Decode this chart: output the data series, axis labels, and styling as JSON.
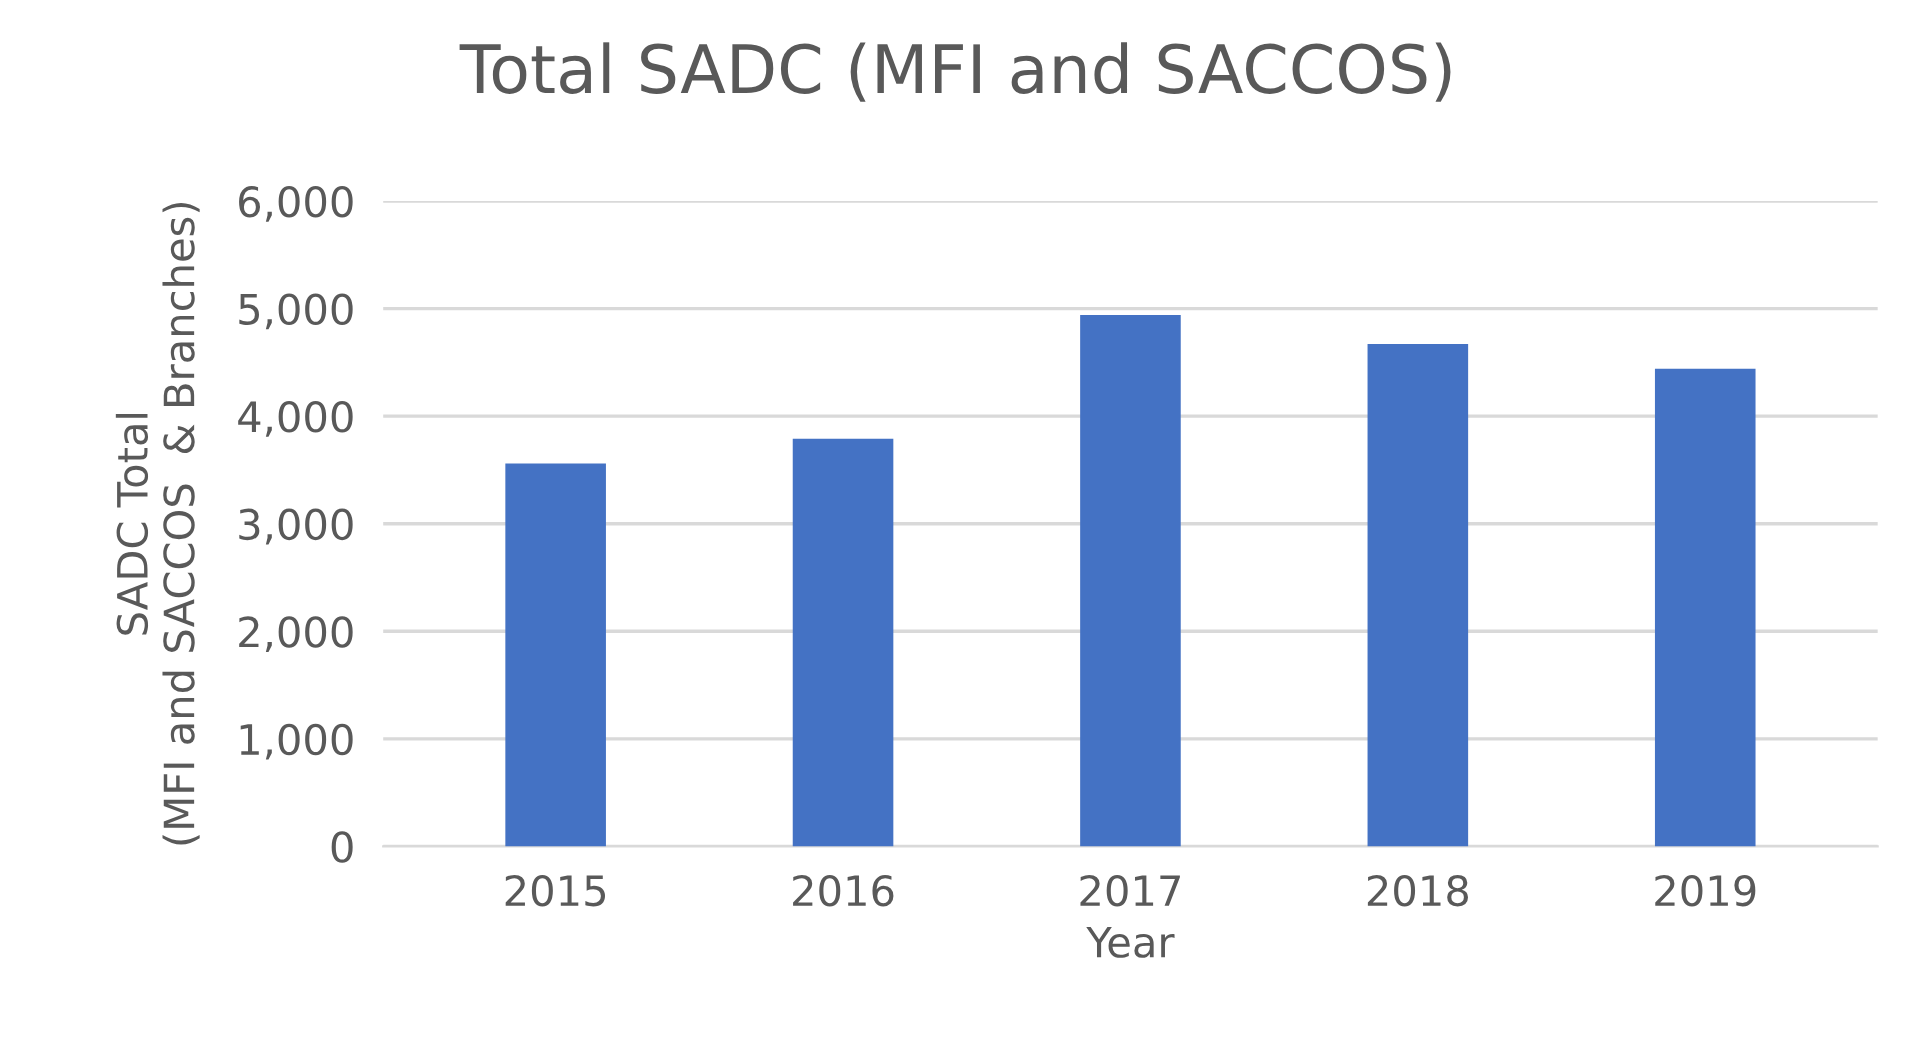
{
  "chart_data": {
    "type": "bar",
    "title": "Total SADC (MFI and SACCOS)",
    "xlabel": "Year",
    "ylabel": "SADC Total\n(MFI and SACCOS  & Branches)",
    "categories": [
      "2015",
      "2016",
      "2017",
      "2018",
      "2019"
    ],
    "values": [
      3560,
      3790,
      4940,
      4670,
      4440
    ],
    "color": "#4472c4",
    "ylim": [
      0,
      6000
    ],
    "yticks": [
      {
        "value": 0,
        "label": "0"
      },
      {
        "value": 1000,
        "label": "1,000"
      },
      {
        "value": 2000,
        "label": "2,000"
      },
      {
        "value": 3000,
        "label": "3,000"
      },
      {
        "value": 4000,
        "label": "4,000"
      },
      {
        "value": 5000,
        "label": "5,000"
      },
      {
        "value": 6000,
        "label": "6,000"
      }
    ],
    "grid": "y"
  }
}
